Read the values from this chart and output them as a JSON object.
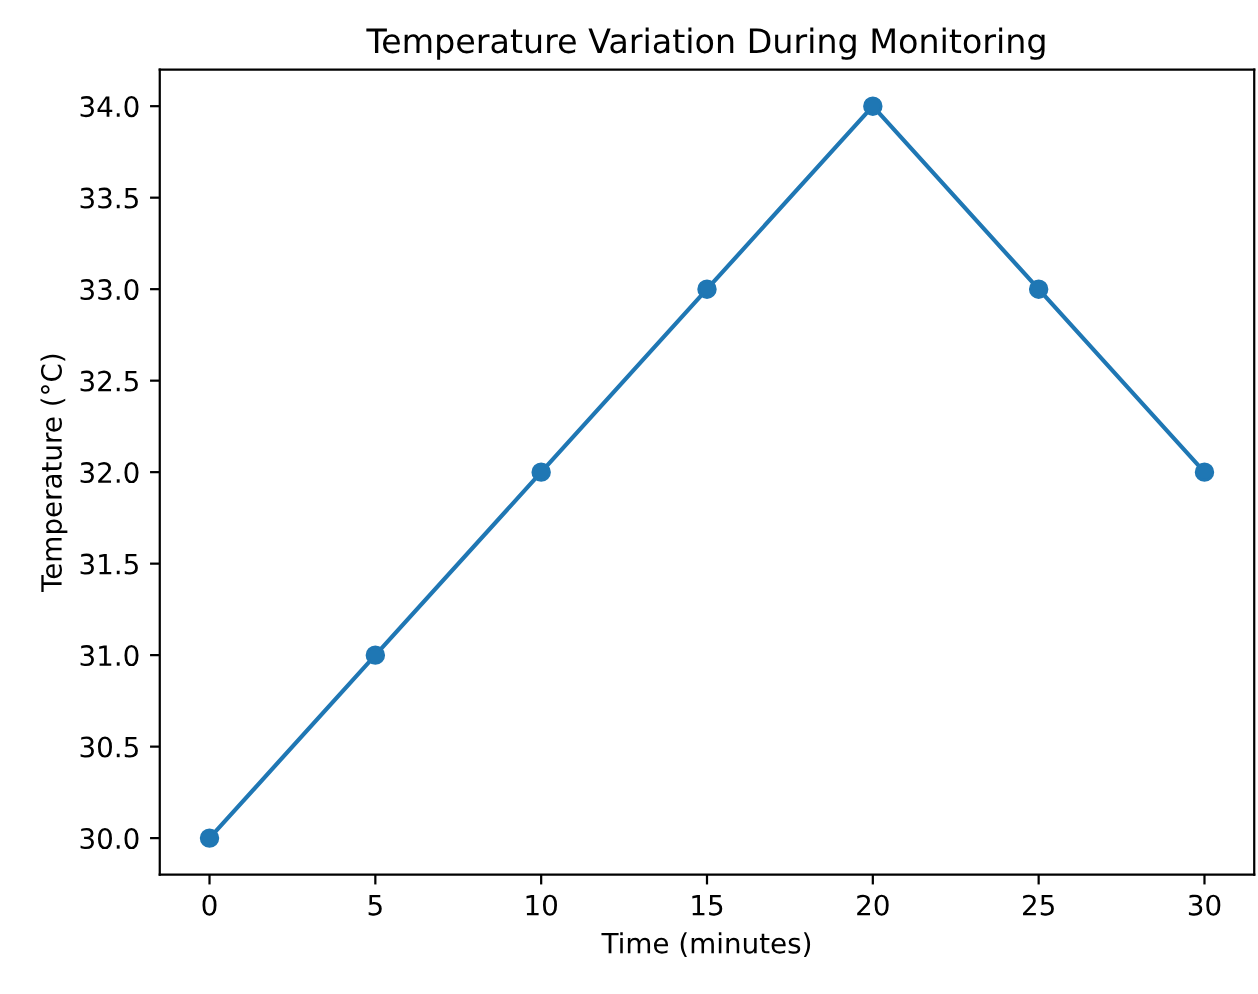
{
  "chart_data": {
    "type": "line",
    "title": "Temperature Variation During Monitoring",
    "xlabel": "Time (minutes)",
    "ylabel": "Temperature (°C)",
    "x": [
      0,
      5,
      10,
      15,
      20,
      25,
      30
    ],
    "series": [
      {
        "color": "#1f77b4",
        "values": [
          30.0,
          31.0,
          32.0,
          33.0,
          34.0,
          33.0,
          32.0
        ]
      }
    ],
    "xlim": [
      -1.5,
      31.5
    ],
    "xticks": [
      0,
      5,
      10,
      15,
      20,
      25,
      30
    ],
    "ylim": [
      29.8,
      34.2
    ],
    "yticks": [
      {
        "value": 30,
        "label": "30.0"
      },
      {
        "value": 30.5,
        "label": "30.5"
      },
      {
        "value": 31,
        "label": "31.0"
      },
      {
        "value": 31.5,
        "label": "31.5"
      },
      {
        "value": 32,
        "label": "32.0"
      },
      {
        "value": 32.5,
        "label": "32.5"
      },
      {
        "value": 33,
        "label": "33.0"
      },
      {
        "value": 33.5,
        "label": "33.5"
      },
      {
        "value": 34,
        "label": "34.0"
      }
    ],
    "marker": "circle",
    "line_style": "solid",
    "grid": false,
    "legend": false
  }
}
